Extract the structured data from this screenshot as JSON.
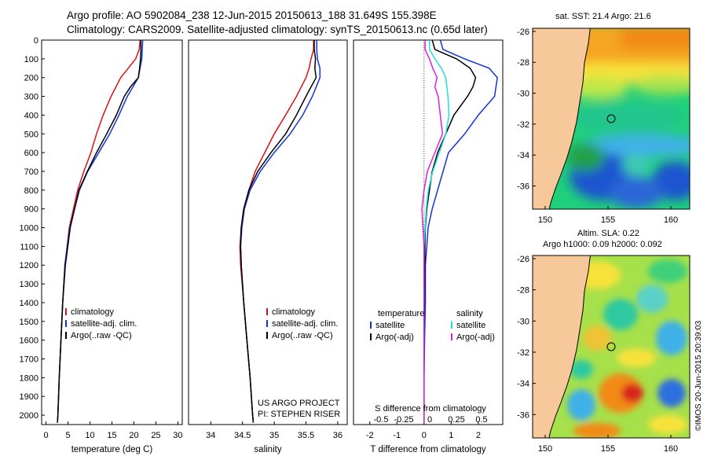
{
  "titles": {
    "line1": "Argo profile: AO 5902084_238 12-Jun-2015 20150613_188 31.649S 155.398E",
    "line2": "Climatology: CARS2009. Satellite-adjusted climatology: synTS_20150613.nc (0.65d later)"
  },
  "project": {
    "line1": "US ARGO PROJECT",
    "line2": "PI: STEPHEN RISER"
  },
  "map_titles": {
    "sst": "sat. SST: 21.4 Argo: 21.6",
    "sla1": "Altim. SLA: 0.22",
    "sla2": "Argo h1000: 0.09 h2000: 0.092"
  },
  "stamp": "©IMOS 20-Jun-2015 20:39:03",
  "colors": {
    "climatology": "#dd1111",
    "satellite": "#1133dd",
    "argo": "#000000",
    "sal_satellite": "#22dddd",
    "sal_argo": "#dd22dd",
    "land": "#f7c89a"
  },
  "chart_data": [
    {
      "type": "line",
      "xlabel": "temperature (deg C)",
      "ylabel": "",
      "xlim": [
        -1,
        31
      ],
      "ylim": [
        2050,
        0
      ],
      "xticks": [
        "0",
        "5",
        "10",
        "15",
        "20",
        "25",
        "30"
      ],
      "yticks": [
        "0",
        "100",
        "200",
        "300",
        "400",
        "500",
        "600",
        "700",
        "800",
        "900",
        "1000",
        "1100",
        "1200",
        "1300",
        "1400",
        "1500",
        "1600",
        "1700",
        "1800",
        "1900",
        "2000"
      ],
      "legend": [
        "climatology",
        "satellite-adj. clim.",
        "Argo(..raw -QC)"
      ],
      "series": [
        {
          "name": "climatology",
          "depth": [
            0,
            50,
            100,
            150,
            200,
            300,
            400,
            500,
            600,
            700,
            800,
            1000,
            1200,
            1400,
            1600,
            1800,
            2000,
            2040
          ],
          "values": [
            21.4,
            21.2,
            20.4,
            18.7,
            17.0,
            14.8,
            13.0,
            11.5,
            10.2,
            8.6,
            7.2,
            5.3,
            4.3,
            3.8,
            3.4,
            3.0,
            2.7,
            2.6
          ]
        },
        {
          "name": "satellite-adj. clim.",
          "depth": [
            0,
            50,
            100,
            150,
            200,
            300,
            400,
            500,
            600,
            700,
            800,
            1000,
            1200,
            1400,
            1600,
            1800,
            2000,
            2040
          ],
          "values": [
            22.0,
            21.9,
            21.8,
            21.4,
            21.0,
            18.5,
            16.6,
            14.5,
            12.0,
            9.5,
            7.6,
            5.4,
            4.3,
            3.8,
            3.4,
            3.0,
            2.7,
            2.6
          ]
        },
        {
          "name": "Argo(..raw -QC)",
          "depth": [
            0,
            50,
            100,
            150,
            200,
            250,
            300,
            400,
            500,
            600,
            700,
            800,
            1000,
            1200,
            1400,
            1600,
            1800,
            2000,
            2040
          ],
          "values": [
            21.6,
            21.6,
            21.5,
            21.3,
            21.0,
            19.2,
            17.8,
            16.0,
            13.8,
            11.5,
            9.4,
            7.5,
            5.5,
            4.4,
            3.8,
            3.4,
            3.0,
            2.7,
            2.6
          ]
        }
      ]
    },
    {
      "type": "line",
      "xlabel": "salinity",
      "xlim": [
        33.65,
        36.15
      ],
      "ylim": [
        2050,
        0
      ],
      "xticks": [
        "34",
        "34.5",
        "35",
        "35.5",
        "36"
      ],
      "legend": [
        "climatology",
        "satellite-adj. clim.",
        "Argo(..raw -QC)"
      ],
      "series": [
        {
          "name": "climatology",
          "depth": [
            0,
            50,
            100,
            150,
            200,
            300,
            400,
            500,
            600,
            700,
            800,
            900,
            1000,
            1100,
            1200,
            1400,
            1600,
            1800,
            2000,
            2040
          ],
          "values": [
            35.62,
            35.62,
            35.58,
            35.55,
            35.5,
            35.35,
            35.18,
            35.0,
            34.85,
            34.7,
            34.6,
            34.52,
            34.48,
            34.46,
            34.47,
            34.52,
            34.57,
            34.62,
            34.66,
            34.67
          ]
        },
        {
          "name": "satellite-adj. clim.",
          "depth": [
            0,
            50,
            100,
            150,
            200,
            300,
            400,
            500,
            600,
            700,
            800,
            900,
            1000,
            1100,
            1200,
            1400,
            1600,
            1800,
            2000,
            2040
          ],
          "values": [
            35.67,
            35.67,
            35.68,
            35.72,
            35.72,
            35.6,
            35.45,
            35.25,
            35.0,
            34.78,
            34.62,
            34.53,
            34.49,
            34.47,
            34.48,
            34.52,
            34.57,
            34.62,
            34.66,
            34.67
          ]
        },
        {
          "name": "Argo(..raw -QC)",
          "depth": [
            0,
            50,
            100,
            150,
            200,
            250,
            300,
            400,
            500,
            600,
            700,
            800,
            900,
            1000,
            1100,
            1200,
            1400,
            1600,
            1800,
            2000,
            2040
          ],
          "values": [
            35.63,
            35.63,
            35.65,
            35.64,
            35.66,
            35.58,
            35.5,
            35.35,
            35.18,
            34.95,
            34.74,
            34.6,
            34.52,
            34.48,
            34.47,
            34.48,
            34.52,
            34.57,
            34.62,
            34.66,
            34.67
          ]
        }
      ]
    },
    {
      "type": "line",
      "xlabel": "T difference from climatology",
      "xlabel2": "S difference from climatology",
      "xlim": [
        -2.6,
        2.9
      ],
      "ylim": [
        2050,
        0
      ],
      "xticks": [
        "-2",
        "-1",
        "0",
        "1",
        "2"
      ],
      "xticks_s": [
        "-0.5",
        "-0.25",
        "0",
        "0.25",
        "0.5"
      ],
      "legend_headers": [
        "temperature",
        "salinity"
      ],
      "legend_t": [
        "satellite",
        "Argo(-adj)"
      ],
      "legend_s": [
        "satellite",
        "Argo(-adj)"
      ],
      "series": [
        {
          "name": "temperature satellite",
          "depth": [
            0,
            50,
            100,
            150,
            200,
            300,
            400,
            500,
            600,
            700,
            800,
            900,
            1000,
            1100,
            1200,
            1400,
            1600,
            1800,
            2000,
            2040
          ],
          "values": [
            0.6,
            0.7,
            1.5,
            2.4,
            2.7,
            2.6,
            2.0,
            1.5,
            0.9,
            0.7,
            0.5,
            0.3,
            0.15,
            0.1,
            0.05,
            0.05,
            0.02,
            0.0,
            0.0,
            0.0
          ]
        },
        {
          "name": "temperature Argo(-adj)",
          "depth": [
            0,
            50,
            100,
            150,
            200,
            250,
            300,
            400,
            500,
            600,
            700,
            800,
            900,
            1000,
            1100,
            1200,
            1400,
            1600,
            1800,
            2000,
            2040
          ],
          "values": [
            0.3,
            0.4,
            1.2,
            1.7,
            1.9,
            1.8,
            1.6,
            1.1,
            0.8,
            0.5,
            0.3,
            0.2,
            0.1,
            0.05,
            0.03,
            0.03,
            0.02,
            0.0,
            0.0,
            0.0,
            0.0
          ]
        },
        {
          "name": "salinity satellite",
          "depth": [
            0,
            50,
            100,
            150,
            200,
            300,
            400,
            500,
            600,
            700,
            800,
            900,
            1000,
            1100,
            1200,
            1400,
            1600,
            1800,
            2000,
            2040
          ],
          "values": [
            0.05,
            0.05,
            0.1,
            0.16,
            0.2,
            0.22,
            0.23,
            0.2,
            0.14,
            0.08,
            0.04,
            0.02,
            0.01,
            0.0,
            0.0,
            0.0,
            0.0,
            0.0,
            0.0,
            0.0
          ]
        },
        {
          "name": "salinity Argo(-adj)",
          "depth": [
            0,
            50,
            100,
            150,
            200,
            250,
            300,
            400,
            500,
            600,
            700,
            800,
            900,
            1000,
            1100,
            1200,
            1400,
            1600,
            1800,
            2000,
            2040
          ],
          "values": [
            0.01,
            0.01,
            0.05,
            0.08,
            0.12,
            0.1,
            0.13,
            0.15,
            0.17,
            0.1,
            0.03,
            0.0,
            -0.02,
            -0.01,
            0.0,
            0.0,
            0.0,
            0.0,
            0.0,
            0.0,
            0.0
          ]
        }
      ]
    },
    {
      "type": "heatmap",
      "title": "sat. SST: 21.4 Argo: 21.6",
      "xlim": [
        149,
        161.5
      ],
      "ylim": [
        -37.5,
        -25.8
      ],
      "xticks": [
        "150",
        "155",
        "160"
      ],
      "yticks": [
        "-26",
        "-28",
        "-30",
        "-32",
        "-34",
        "-36"
      ],
      "profile_location": [
        155.4,
        -31.65
      ]
    },
    {
      "type": "heatmap",
      "title": "Altim. SLA: 0.22",
      "xlim": [
        149,
        161.5
      ],
      "ylim": [
        -37.5,
        -25.8
      ],
      "xticks": [
        "150",
        "155",
        "160"
      ],
      "yticks": [
        "-26",
        "-28",
        "-30",
        "-32",
        "-34",
        "-36"
      ],
      "profile_location": [
        155.4,
        -31.65
      ]
    }
  ]
}
